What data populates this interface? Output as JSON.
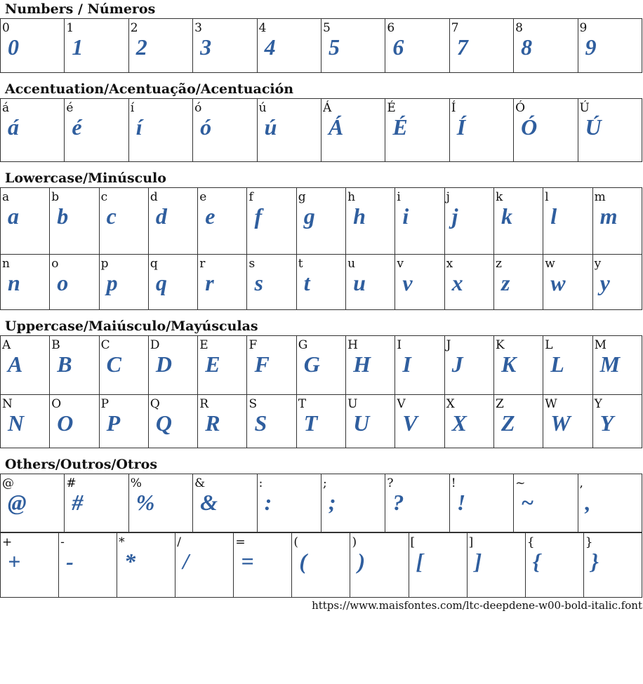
{
  "sections": [
    {
      "title": "Numbers / Números",
      "rows": [
        [
          "0",
          "1",
          "2",
          "3",
          "4",
          "5",
          "6",
          "7",
          "8",
          "9"
        ]
      ],
      "heights": [
        77
      ]
    },
    {
      "title": "Accentuation/Acentuação/Acentuación",
      "rows": [
        [
          "á",
          "é",
          "í",
          "ó",
          "ú",
          "Á",
          "É",
          "Í",
          "Ó",
          "Ú"
        ]
      ],
      "heights": [
        90
      ]
    },
    {
      "title": "Lowercase/Minúsculo",
      "rows": [
        [
          "a",
          "b",
          "c",
          "d",
          "e",
          "f",
          "g",
          "h",
          "i",
          "j",
          "k",
          "l",
          "m"
        ],
        [
          "n",
          "o",
          "p",
          "q",
          "r",
          "s",
          "t",
          "u",
          "v",
          "x",
          "z",
          "w",
          "y"
        ]
      ],
      "heights": [
        95,
        79
      ]
    },
    {
      "title": "Uppercase/Maiúsculo/Mayúsculas",
      "rows": [
        [
          "A",
          "B",
          "C",
          "D",
          "E",
          "F",
          "G",
          "H",
          "I",
          "J",
          "K",
          "L",
          "M"
        ],
        [
          "N",
          "O",
          "P",
          "Q",
          "R",
          "S",
          "T",
          "U",
          "V",
          "X",
          "Z",
          "W",
          "Y"
        ]
      ],
      "heights": [
        84,
        76
      ]
    },
    {
      "title": "Others/Outros/Otros",
      "rows": [
        [
          "@",
          "#",
          "%",
          "&",
          ":",
          ";",
          "?",
          "!",
          "~",
          ","
        ]
      ],
      "heights": [
        83
      ],
      "extra": {
        "rows": [
          [
            "+",
            "-",
            "*",
            "/",
            "=",
            "(",
            ")",
            "[",
            "]",
            "{",
            "}"
          ]
        ],
        "heights": [
          92
        ]
      }
    }
  ],
  "glyph_color": "#2f5e9e",
  "footer_url": "https://www.maisfontes.com/ltc-deepdene-w00-bold-italic.font"
}
